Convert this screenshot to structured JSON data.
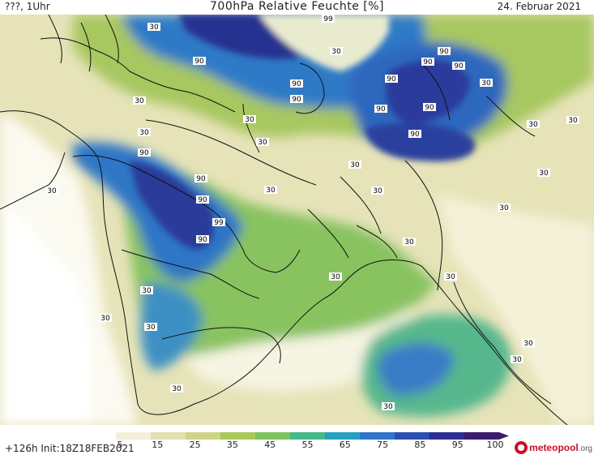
{
  "header": {
    "left_text": "???, 1Uhr",
    "title": "700hPa Relative Feuchte [%]",
    "date": "24. Februar 2021"
  },
  "footer": {
    "run_text": "+126h Init:18Z18FEB2021",
    "logo_text": "meteopool",
    "logo_suffix": ".org"
  },
  "colorbar": {
    "colors": [
      "#ffffff",
      "#f3f0da",
      "#e3e0b4",
      "#cdd486",
      "#a9c85c",
      "#7cc35d",
      "#46b98c",
      "#27a0c0",
      "#2f75c8",
      "#2a4fb0",
      "#2b2f92",
      "#3a1b6d"
    ],
    "ticks": [
      "5",
      "15",
      "25",
      "35",
      "45",
      "55",
      "65",
      "75",
      "85",
      "95",
      "100"
    ]
  },
  "map": {
    "background": "#e9e6bf",
    "contour_labels": [
      "99",
      "90",
      "90",
      "90",
      "90",
      "90",
      "90",
      "90",
      "90",
      "90",
      "90",
      "90",
      "90",
      "90",
      "99",
      "90",
      "30",
      "30",
      "30",
      "30",
      "30",
      "30",
      "30",
      "30",
      "30",
      "30",
      "30",
      "30",
      "30",
      "30",
      "30",
      "30",
      "30",
      "30",
      "30",
      "30",
      "30",
      "30",
      "30",
      "30",
      "30"
    ]
  }
}
